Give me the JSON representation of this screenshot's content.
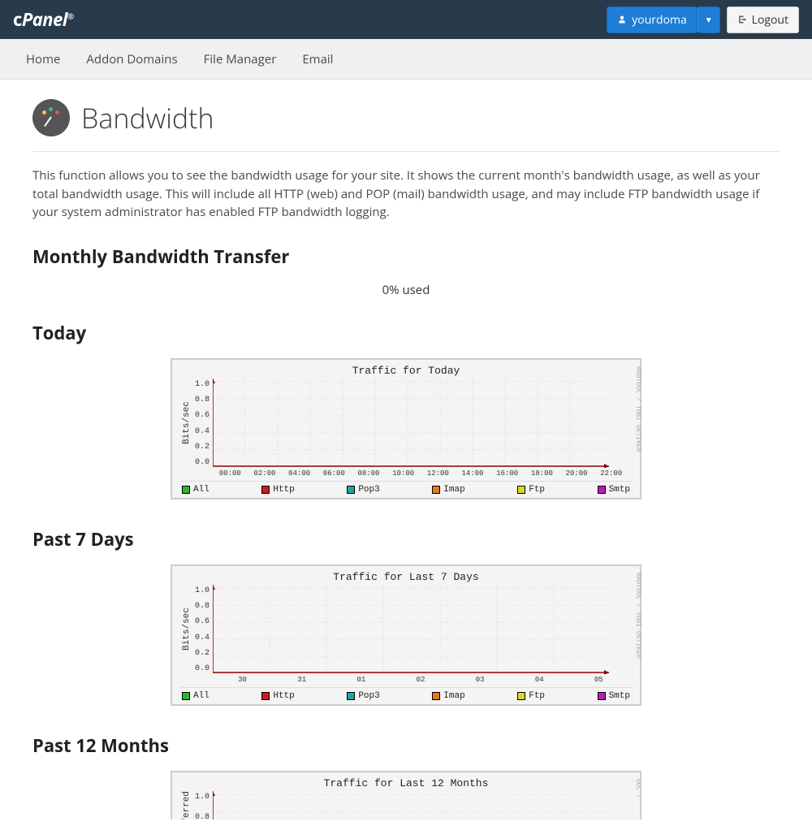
{
  "topbar": {
    "logo": "cPanel",
    "user_label": "yourdoma",
    "logout_label": "Logout"
  },
  "nav": {
    "items": [
      {
        "label": "Home"
      },
      {
        "label": "Addon Domains"
      },
      {
        "label": "File Manager"
      },
      {
        "label": "Email"
      }
    ]
  },
  "page": {
    "title": "Bandwidth",
    "intro": "This function allows you to see the bandwidth usage for your site. It shows the current month's bandwidth usage, as well as your total bandwidth usage. This will include all HTTP (web) and POP (mail) bandwidth usage, and may include FTP bandwidth usage if your system administrator has enabled FTP bandwidth logging."
  },
  "monthly": {
    "heading": "Monthly Bandwidth Transfer",
    "usage_text": "0% used"
  },
  "legend_items": [
    {
      "label": "All",
      "color": "#2bb52b"
    },
    {
      "label": "Http",
      "color": "#c81e1e"
    },
    {
      "label": "Pop3",
      "color": "#1ea7a0"
    },
    {
      "label": "Imap",
      "color": "#e07b1e"
    },
    {
      "label": "Ftp",
      "color": "#d8d82b"
    },
    {
      "label": "Smtp",
      "color": "#b61eb6"
    }
  ],
  "charts": {
    "today": {
      "section_heading": "Today",
      "title": "Traffic for Today",
      "ylabel": "Bits/sec",
      "yticks": [
        "1.0",
        "0.8",
        "0.6",
        "0.4",
        "0.2",
        "0.0"
      ],
      "xticks": [
        "00:00",
        "02:00",
        "04:00",
        "06:00",
        "08:00",
        "10:00",
        "12:00",
        "14:00",
        "16:00",
        "18:00",
        "20:00",
        "22:00"
      ],
      "ylim": [
        0,
        1.0
      ],
      "grid_color": "#e8c8c8",
      "axis_color": "#8b0000",
      "background": "#f4f4f4",
      "side_text": "RRDTOOL / TOBI OETIKER"
    },
    "past7": {
      "section_heading": "Past 7 Days",
      "title": "Traffic for Last 7 Days",
      "ylabel": "Bits/sec",
      "yticks": [
        "1.0",
        "0.8",
        "0.6",
        "0.4",
        "0.2",
        "0.0"
      ],
      "xticks": [
        "30",
        "31",
        "01",
        "02",
        "03",
        "04",
        "05"
      ],
      "ylim": [
        0,
        1.0
      ],
      "grid_color": "#e8c8c8",
      "axis_color": "#8b0000",
      "background": "#f4f4f4",
      "side_text": "RRDTOOL / TOBI OETIKER"
    },
    "past12": {
      "section_heading": "Past 12 Months",
      "title": "Traffic for Last 12 Months",
      "ylabel": "nsferred",
      "yticks": [
        "1.0",
        "0.8"
      ],
      "ylim": [
        0,
        1.0
      ],
      "grid_color": "#e8c8c8",
      "axis_color": "#8b0000",
      "background": "#f4f4f4",
      "side_text": "OOL /"
    }
  }
}
